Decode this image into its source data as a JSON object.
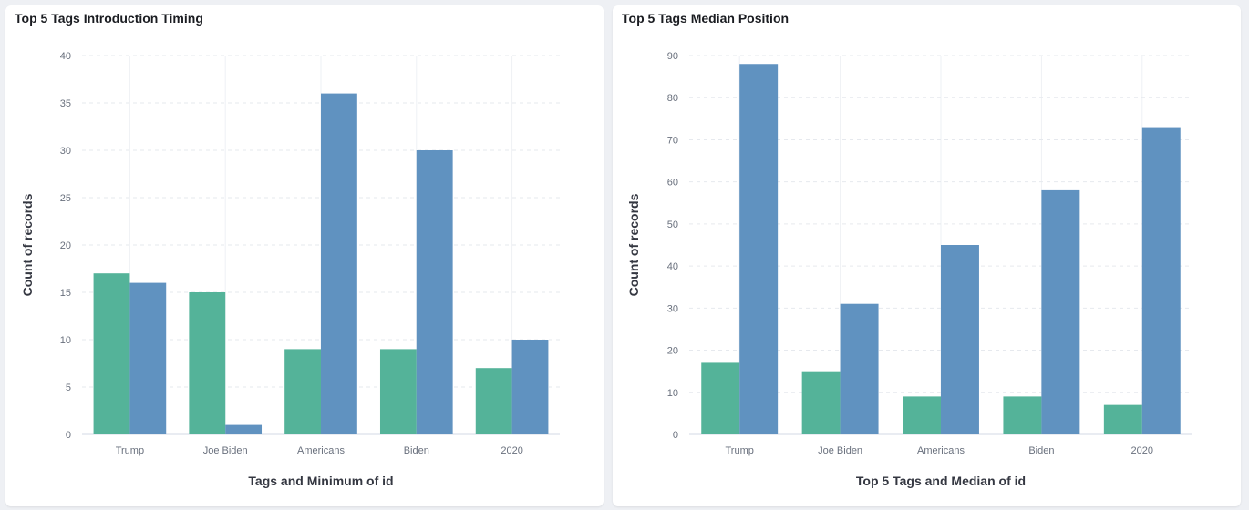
{
  "panels": [
    {
      "title": "Top 5 Tags Introduction Timing",
      "chart_data": {
        "type": "bar",
        "categories": [
          "Trump",
          "Joe Biden",
          "Americans",
          "Biden",
          "2020"
        ],
        "series": [
          {
            "values": [
              17,
              15,
              9,
              9,
              7
            ],
            "color": "#54b399"
          },
          {
            "values": [
              16,
              1,
              36,
              30,
              10
            ],
            "color": "#6092c0"
          }
        ],
        "xlabel": "Tags and Minimum of id",
        "ylabel": "Count of records",
        "ylim": [
          0,
          40
        ],
        "yticks": [
          0,
          5,
          10,
          15,
          20,
          25,
          30,
          35,
          40
        ],
        "grid": true
      }
    },
    {
      "title": "Top 5 Tags Median Position",
      "chart_data": {
        "type": "bar",
        "categories": [
          "Trump",
          "Joe Biden",
          "Americans",
          "Biden",
          "2020"
        ],
        "series": [
          {
            "values": [
              17,
              15,
              9,
              9,
              7
            ],
            "color": "#54b399"
          },
          {
            "values": [
              88,
              31,
              45,
              58,
              73
            ],
            "color": "#6092c0"
          }
        ],
        "xlabel": "Top 5 Tags and Median of id",
        "ylabel": "Count of records",
        "ylim": [
          0,
          90
        ],
        "yticks": [
          0,
          10,
          20,
          30,
          40,
          50,
          60,
          70,
          80,
          90
        ],
        "grid": true
      }
    }
  ]
}
